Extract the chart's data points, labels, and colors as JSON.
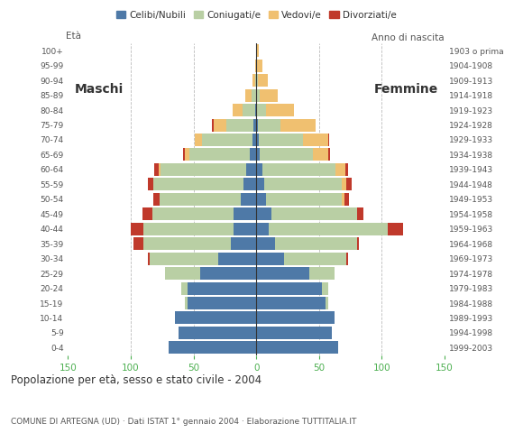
{
  "age_groups": [
    "0-4",
    "5-9",
    "10-14",
    "15-19",
    "20-24",
    "25-29",
    "30-34",
    "35-39",
    "40-44",
    "45-49",
    "50-54",
    "55-59",
    "60-64",
    "65-69",
    "70-74",
    "75-79",
    "80-84",
    "85-89",
    "90-94",
    "95-99",
    "100+"
  ],
  "birth_years": [
    "1999-2003",
    "1994-1998",
    "1989-1993",
    "1984-1988",
    "1979-1983",
    "1974-1978",
    "1969-1973",
    "1964-1968",
    "1959-1963",
    "1954-1958",
    "1949-1953",
    "1944-1948",
    "1939-1943",
    "1934-1938",
    "1929-1933",
    "1924-1928",
    "1919-1923",
    "1914-1918",
    "1909-1913",
    "1904-1908",
    "1903 o prima"
  ],
  "males": {
    "celibi": [
      70,
      62,
      65,
      55,
      55,
      45,
      30,
      20,
      18,
      18,
      12,
      10,
      8,
      5,
      3,
      2,
      1,
      0,
      0,
      0,
      0
    ],
    "coniugati": [
      0,
      0,
      0,
      2,
      5,
      28,
      55,
      70,
      72,
      65,
      65,
      72,
      68,
      48,
      40,
      22,
      10,
      4,
      1,
      0,
      0
    ],
    "vedovi": [
      0,
      0,
      0,
      0,
      0,
      0,
      0,
      0,
      0,
      0,
      0,
      0,
      2,
      4,
      6,
      10,
      8,
      5,
      2,
      1,
      0
    ],
    "divorziati": [
      0,
      0,
      0,
      0,
      0,
      0,
      1,
      8,
      10,
      8,
      5,
      4,
      3,
      1,
      0,
      1,
      0,
      0,
      0,
      0,
      0
    ]
  },
  "females": {
    "nubili": [
      65,
      60,
      62,
      55,
      52,
      42,
      22,
      15,
      10,
      12,
      8,
      6,
      5,
      3,
      2,
      1,
      0,
      0,
      0,
      0,
      0
    ],
    "coniugate": [
      0,
      0,
      0,
      2,
      5,
      20,
      50,
      65,
      95,
      68,
      60,
      62,
      58,
      42,
      35,
      18,
      8,
      3,
      1,
      0,
      0
    ],
    "vedove": [
      0,
      0,
      0,
      0,
      0,
      0,
      0,
      0,
      0,
      0,
      2,
      4,
      8,
      12,
      20,
      28,
      22,
      14,
      8,
      5,
      2
    ],
    "divorziate": [
      0,
      0,
      0,
      0,
      0,
      0,
      1,
      2,
      12,
      5,
      4,
      4,
      2,
      2,
      1,
      0,
      0,
      0,
      0,
      0,
      0
    ]
  },
  "colors": {
    "celibi": "#4e79a7",
    "coniugati": "#b9cfa4",
    "vedovi": "#f0c070",
    "divorziati": "#c0392b"
  },
  "xlim": 150,
  "title": "Popolazione per età, sesso e stato civile - 2004",
  "subtitle": "COMUNE DI ARTEGNA (UD) · Dati ISTAT 1° gennaio 2004 · Elaborazione TUTTITALIA.IT",
  "legend_labels": [
    "Celibi/Nubili",
    "Coniugati/e",
    "Vedovi/e",
    "Divorziati/e"
  ],
  "label_maschi": "Maschi",
  "label_femmine": "Femmine",
  "label_eta": "Età",
  "label_anno": "Anno di nascita",
  "tick_color": "#4caf50",
  "background_color": "#ffffff",
  "grid_color": "#bbbbbb"
}
